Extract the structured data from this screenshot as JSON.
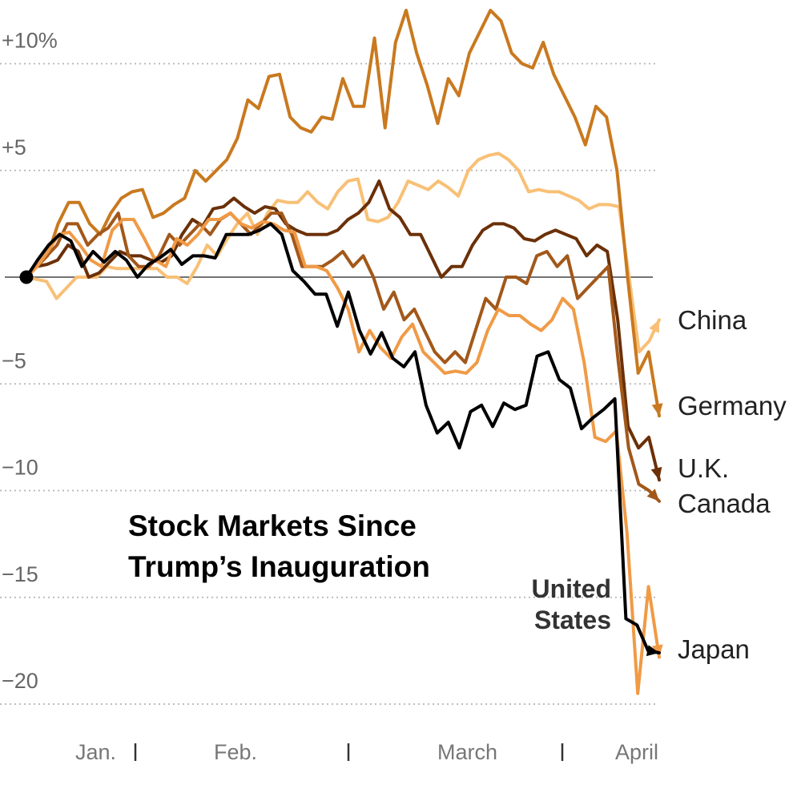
{
  "chart_data": {
    "type": "line",
    "title_lines": [
      "Stock Markets Since",
      "Trump’s Inauguration"
    ],
    "ylim": [
      -20,
      10
    ],
    "y_ticks": [
      {
        "value": 10,
        "label": "+10%"
      },
      {
        "value": 5,
        "label": "+5"
      },
      {
        "value": 0,
        "label": ""
      },
      {
        "value": -5,
        "label": "−5"
      },
      {
        "value": -10,
        "label": "−10"
      },
      {
        "value": -15,
        "label": "−15"
      },
      {
        "value": -20,
        "label": "−20"
      }
    ],
    "x_labels": [
      "Jan.",
      "Feb.",
      "March",
      "April"
    ],
    "series": [
      {
        "name": "China",
        "color": "#f8c076",
        "values": [
          0,
          -0.1,
          -0.2,
          -1,
          -0.5,
          0,
          0,
          0,
          0.5,
          0.4,
          0.4,
          0.4,
          0.4,
          0.4,
          0,
          0,
          -0.3,
          0.5,
          1.5,
          1,
          1.8,
          2.5,
          3,
          2,
          3,
          3.6,
          3.5,
          3.5,
          4,
          3.5,
          3.2,
          4,
          4.5,
          4.6,
          2.7,
          2.6,
          2.8,
          3.5,
          4.5,
          4.3,
          4.1,
          4.5,
          4.2,
          3.8,
          5,
          5.5,
          5.7,
          5.8,
          5.5,
          5,
          4,
          4.1,
          4,
          4,
          3.8,
          3.6,
          3.2,
          3.4,
          3.4,
          3.3,
          0,
          -3.5,
          -3,
          -2
        ]
      },
      {
        "name": "Germany",
        "color": "#c9791f",
        "values": [
          0,
          0.5,
          1,
          2.5,
          3.5,
          3.5,
          2.5,
          2,
          3,
          3.7,
          4,
          4.1,
          2.8,
          3,
          3.4,
          3.7,
          5,
          4.5,
          5,
          5.5,
          6.5,
          8.3,
          7.9,
          9.4,
          9.5,
          7.5,
          7,
          6.8,
          7.5,
          7.4,
          9.3,
          8,
          8,
          11.2,
          7,
          11,
          12.5,
          10.5,
          9,
          7.2,
          9.3,
          8.5,
          10.5,
          11.5,
          12.5,
          12,
          10.5,
          10,
          9.8,
          11,
          9.5,
          8.5,
          7.5,
          6.2,
          8,
          7.5,
          5,
          0,
          -4.5,
          -3.5,
          -6.5
        ]
      },
      {
        "name": "U.K.",
        "color": "#6b3008",
        "values": [
          0,
          0.5,
          0.6,
          0.8,
          1.5,
          1.2,
          0,
          0.2,
          0.7,
          1.2,
          1,
          1,
          0.8,
          0.7,
          1,
          2,
          2.7,
          2.4,
          3.2,
          3.3,
          3.7,
          3.3,
          3,
          3.3,
          3.2,
          2.5,
          2.2,
          2,
          2,
          2,
          2.2,
          2.7,
          3,
          3.5,
          4.5,
          3.2,
          2.8,
          2,
          2,
          1,
          0,
          0.5,
          0.5,
          1.5,
          2.2,
          2.5,
          2.5,
          2.3,
          1.8,
          1.7,
          2,
          2.2,
          2,
          1.8,
          1,
          1.5,
          1.2,
          -2,
          -7,
          -8,
          -7.5,
          -9.5
        ]
      },
      {
        "name": "Canada",
        "color": "#a2581a",
        "values": [
          0,
          0.5,
          1,
          1.5,
          2.5,
          2.5,
          1.5,
          2,
          2.3,
          3,
          1,
          0.5,
          0.5,
          1,
          2,
          1.5,
          2,
          2.5,
          2,
          2.7,
          3,
          2.5,
          2,
          2.5,
          3,
          3,
          2,
          0.5,
          0.5,
          0.5,
          0.8,
          1.2,
          0.5,
          1,
          0,
          -1.5,
          -0.7,
          -2,
          -1.5,
          -2.5,
          -3.5,
          -4,
          -3.5,
          -4,
          -2.5,
          -1,
          -1.5,
          0,
          0,
          -0.3,
          1,
          1.2,
          0.5,
          1,
          -1,
          -0.5,
          0,
          0.5,
          -4,
          -8,
          -9.7,
          -10,
          -10.5
        ]
      },
      {
        "name": "Japan",
        "color": "#f09a46",
        "values": [
          0,
          0.5,
          1.2,
          2,
          2.1,
          1.5,
          0.8,
          0.5,
          2.2,
          2.7,
          2.7,
          1.8,
          0.8,
          0.5,
          1.8,
          1.5,
          2,
          2.7,
          2.7,
          3,
          2.5,
          2.3,
          2.6,
          2.5,
          2.2,
          2.1,
          0.5,
          0.5,
          0.3,
          -0.5,
          -1.5,
          -3.5,
          -2.5,
          -3.3,
          -3.8,
          -2.8,
          -2.2,
          -3.5,
          -4,
          -4.5,
          -4.4,
          -4.5,
          -4,
          -2.5,
          -1.5,
          -1.8,
          -1.8,
          -2.2,
          -2.5,
          -2,
          -1,
          -1.5,
          -4,
          -7.5,
          -7.7,
          -7.2,
          -12,
          -19.5,
          -14.5,
          -17.8
        ]
      },
      {
        "name": "United States",
        "color": "#000000",
        "values": [
          0,
          0.8,
          1.5,
          2,
          1.7,
          0.5,
          1.2,
          0.7,
          1.2,
          0.8,
          0,
          0.6,
          0.9,
          1.3,
          0.6,
          1,
          1,
          0.9,
          2,
          2,
          2,
          2.2,
          2.5,
          2,
          0.3,
          -0.2,
          -0.8,
          -0.8,
          -2.3,
          -0.7,
          -2.5,
          -3.6,
          -2.6,
          -3.8,
          -4.2,
          -3.5,
          -6,
          -7.3,
          -6.8,
          -8,
          -6.3,
          -6,
          -7,
          -5.9,
          -6.2,
          -6,
          -3.7,
          -3.5,
          -4.8,
          -5.2,
          -7.1,
          -6.6,
          -6.2,
          -5.7,
          -16,
          -16.3,
          -17.5,
          -17.6
        ]
      }
    ],
    "series_labels": [
      {
        "text": "China"
      },
      {
        "text": "Germany"
      },
      {
        "text": "U.K."
      },
      {
        "text": "Canada"
      },
      {
        "text": "Japan"
      }
    ],
    "us_label_lines": [
      "United",
      "States"
    ]
  }
}
